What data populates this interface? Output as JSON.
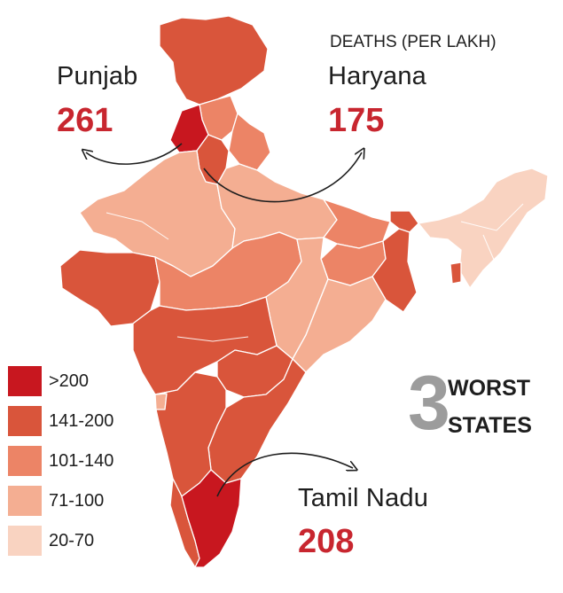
{
  "title": "DEATHS (PER LAKH)",
  "colors": {
    "gt200": "#c8171f",
    "r141_200": "#d9553b",
    "r101_140": "#ec8466",
    "r71_100": "#f4ae92",
    "r20_70": "#f9d3c1",
    "value_text": "#c8262f",
    "worst_number": "#9c9c9c"
  },
  "legend": [
    {
      "label": ">200",
      "color": "#c8171f"
    },
    {
      "label": "141-200",
      "color": "#d9553b"
    },
    {
      "label": "101-140",
      "color": "#ec8466"
    },
    {
      "label": "71-100",
      "color": "#f4ae92"
    },
    {
      "label": "20-70",
      "color": "#f9d3c1"
    }
  ],
  "callouts": [
    {
      "state": "Punjab",
      "value": "261"
    },
    {
      "state": "Haryana",
      "value": "175"
    },
    {
      "state": "Tamil Nadu",
      "value": "208"
    }
  ],
  "worst": {
    "number": "3",
    "line1": "WORST",
    "line2": "STATES"
  }
}
